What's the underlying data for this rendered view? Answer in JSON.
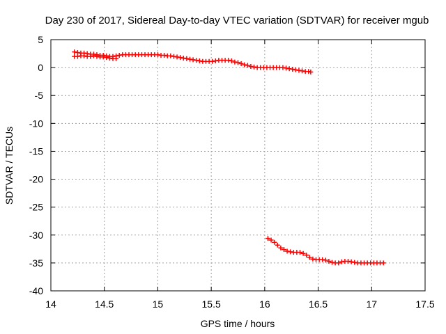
{
  "chart_data": {
    "type": "scatter",
    "title": "Day 230 of 2017, Sidereal Day-to-day VTEC variation (SDTVAR) for receiver mgub",
    "xlabel": "GPS time / hours",
    "ylabel": "SDTVAR / TECUs",
    "xlim": [
      14,
      17.5
    ],
    "ylim": [
      -40,
      5
    ],
    "xticks": [
      14,
      14.5,
      15,
      15.5,
      16,
      16.5,
      17,
      17.5
    ],
    "xtick_labels": [
      "14",
      "14.5",
      "15",
      "15.5",
      "16",
      "16.5",
      "17",
      "17.5"
    ],
    "yticks": [
      5,
      0,
      -5,
      -10,
      -15,
      -20,
      -25,
      -30,
      -35,
      -40
    ],
    "ytick_labels": [
      "5",
      "0",
      "-5",
      "-10",
      "-15",
      "-20",
      "-25",
      "-30",
      "-35",
      "-40"
    ],
    "grid": true,
    "marker": "+",
    "color": "#ff0000",
    "series": [
      {
        "name": "segment-1",
        "x": [
          14.22,
          14.25,
          14.28,
          14.31,
          14.34,
          14.37,
          14.4,
          14.43,
          14.46,
          14.49,
          14.52,
          14.55,
          14.58,
          14.61,
          14.64,
          14.67,
          14.7,
          14.73,
          14.76,
          14.79,
          14.82,
          14.85,
          14.88,
          14.91,
          14.94,
          14.97,
          15.0,
          15.03,
          15.06,
          15.09,
          15.12,
          15.15,
          15.18,
          15.21,
          15.24,
          15.27,
          15.3,
          15.33,
          15.36,
          15.39,
          15.42,
          15.45,
          15.48,
          15.51,
          15.54,
          15.57,
          15.6,
          15.63,
          15.66,
          15.69,
          15.72,
          15.75,
          15.78,
          15.81,
          15.84,
          15.87,
          15.9,
          15.93,
          15.96,
          15.99,
          16.02,
          16.05,
          16.08,
          16.11,
          16.14,
          16.17,
          16.2,
          16.23,
          16.26,
          16.29,
          16.32,
          16.35,
          16.38,
          16.41,
          16.43
        ],
        "y": [
          2.8,
          2.7,
          2.6,
          2.6,
          2.5,
          2.4,
          2.4,
          2.3,
          2.2,
          2.2,
          2.1,
          2.0,
          2.0,
          2.1,
          2.2,
          2.3,
          2.3,
          2.3,
          2.3,
          2.3,
          2.3,
          2.3,
          2.3,
          2.3,
          2.3,
          2.3,
          2.3,
          2.2,
          2.2,
          2.1,
          2.1,
          2.0,
          1.9,
          1.8,
          1.7,
          1.6,
          1.5,
          1.4,
          1.3,
          1.2,
          1.1,
          1.1,
          1.1,
          1.1,
          1.2,
          1.3,
          1.3,
          1.3,
          1.3,
          1.2,
          1.0,
          0.9,
          0.7,
          0.5,
          0.4,
          0.2,
          0.1,
          0.0,
          0.0,
          0.0,
          0.0,
          0.0,
          0.0,
          0.0,
          0.0,
          0.0,
          -0.1,
          -0.2,
          -0.3,
          -0.4,
          -0.5,
          -0.6,
          -0.7,
          -0.7,
          -0.8
        ]
      },
      {
        "name": "segment-1-lower",
        "x": [
          14.22,
          14.25,
          14.28,
          14.31,
          14.34,
          14.37,
          14.4,
          14.43,
          14.46,
          14.49,
          14.52,
          14.55,
          14.58,
          14.61
        ],
        "y": [
          2.0,
          2.0,
          2.1,
          2.1,
          2.0,
          2.0,
          2.1,
          2.0,
          1.9,
          1.9,
          1.8,
          1.7,
          1.6,
          1.6
        ]
      },
      {
        "name": "segment-2",
        "x": [
          16.03,
          16.06,
          16.09,
          16.12,
          16.15,
          16.18,
          16.21,
          16.24,
          16.27,
          16.3,
          16.33,
          16.36,
          16.39,
          16.42,
          16.45,
          16.48,
          16.51,
          16.54,
          16.57,
          16.6,
          16.63,
          16.66,
          16.69,
          16.72,
          16.75,
          16.78,
          16.81,
          16.84,
          16.87,
          16.9,
          16.93,
          16.96,
          16.99,
          17.02,
          17.05,
          17.08,
          17.11
        ],
        "y": [
          -30.6,
          -30.9,
          -31.3,
          -31.8,
          -32.3,
          -32.6,
          -32.9,
          -33.0,
          -33.1,
          -33.1,
          -33.1,
          -33.3,
          -33.6,
          -34.0,
          -34.3,
          -34.4,
          -34.4,
          -34.4,
          -34.5,
          -34.7,
          -34.9,
          -35.0,
          -35.0,
          -34.8,
          -34.7,
          -34.7,
          -34.8,
          -34.9,
          -35.0,
          -35.0,
          -35.0,
          -35.0,
          -35.0,
          -35.0,
          -35.0,
          -35.0,
          -35.0
        ]
      }
    ]
  }
}
